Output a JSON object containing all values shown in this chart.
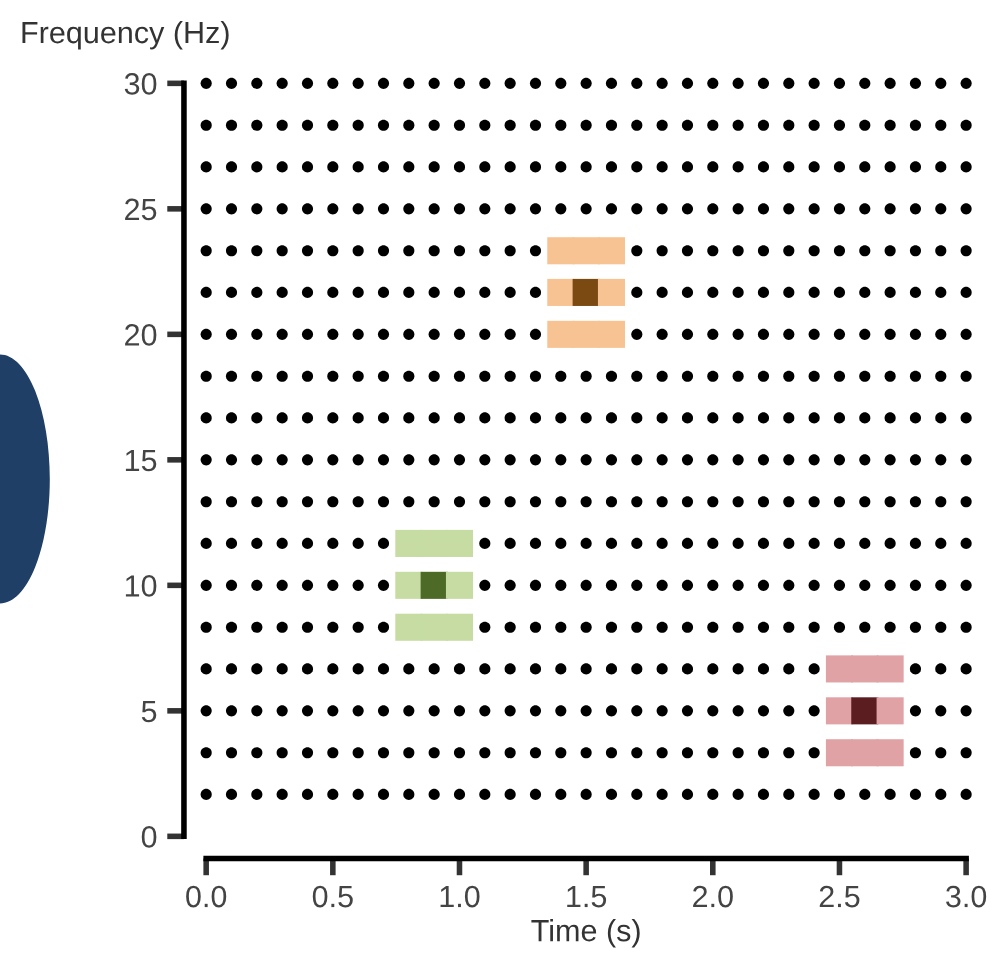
{
  "chart_data": {
    "type": "scatter",
    "xlabel": "Time (s)",
    "ylabel": "Frequency (Hz)",
    "marker": "circle",
    "x": [
      0,
      0.1,
      0.2,
      0.3,
      0.4,
      0.5,
      0.6,
      0.7,
      0.8,
      0.9,
      1.0,
      1.1,
      1.2,
      1.3,
      1.4,
      1.5,
      1.6,
      1.7,
      1.8,
      1.9,
      2.0,
      2.1,
      2.2,
      2.3,
      2.4,
      2.5,
      2.6,
      2.7,
      2.8,
      2.9,
      3.0
    ],
    "xlim": [
      0,
      3
    ],
    "xticks": [
      {
        "value": 0,
        "label": "0.0"
      },
      {
        "value": 0.5,
        "label": "0.5"
      },
      {
        "value": 1,
        "label": "1.0"
      },
      {
        "value": 1.5,
        "label": "1.5"
      },
      {
        "value": 2,
        "label": "2.0"
      },
      {
        "value": 2.5,
        "label": "2.5"
      },
      {
        "value": 3,
        "label": "3.0"
      }
    ],
    "ylim": [
      0,
      30
    ],
    "yticks": [
      0,
      5,
      10,
      15,
      20,
      25,
      30
    ],
    "series": [
      {
        "color": "#000000",
        "values": [
          1.67,
          1.67,
          1.67,
          1.67,
          1.67,
          1.67,
          1.67,
          1.67,
          1.67,
          1.67,
          1.67,
          1.67,
          1.67,
          1.67,
          1.67,
          1.67,
          1.67,
          1.67,
          1.67,
          1.67,
          1.67,
          1.67,
          1.67,
          1.67,
          1.67,
          1.67,
          1.67,
          1.67,
          1.67,
          1.67,
          1.67
        ]
      },
      {
        "color": "#000000",
        "values": [
          3.33,
          3.33,
          3.33,
          3.33,
          3.33,
          3.33,
          3.33,
          3.33,
          3.33,
          3.33,
          3.33,
          3.33,
          3.33,
          3.33,
          3.33,
          3.33,
          3.33,
          3.33,
          3.33,
          3.33,
          3.33,
          3.33,
          3.33,
          3.33,
          3.33,
          null,
          null,
          null,
          3.33,
          3.33,
          3.33
        ]
      },
      {
        "color": "#000000",
        "values": [
          5,
          5,
          5,
          5,
          5,
          5,
          5,
          5,
          5,
          5,
          5,
          5,
          5,
          5,
          5,
          5,
          5,
          5,
          5,
          5,
          5,
          5,
          5,
          5,
          5,
          null,
          null,
          null,
          5,
          5,
          5
        ]
      },
      {
        "color": "#000000",
        "values": [
          6.67,
          6.67,
          6.67,
          6.67,
          6.67,
          6.67,
          6.67,
          6.67,
          6.67,
          6.67,
          6.67,
          6.67,
          6.67,
          6.67,
          6.67,
          6.67,
          6.67,
          6.67,
          6.67,
          6.67,
          6.67,
          6.67,
          6.67,
          6.67,
          6.67,
          null,
          null,
          null,
          6.67,
          6.67,
          6.67
        ]
      },
      {
        "color": "#000000",
        "values": [
          8.33,
          8.33,
          8.33,
          8.33,
          8.33,
          8.33,
          8.33,
          8.33,
          null,
          null,
          null,
          8.33,
          8.33,
          8.33,
          8.33,
          8.33,
          8.33,
          8.33,
          8.33,
          8.33,
          8.33,
          8.33,
          8.33,
          8.33,
          8.33,
          8.33,
          8.33,
          8.33,
          8.33,
          8.33,
          8.33
        ]
      },
      {
        "color": "#000000",
        "values": [
          10,
          10,
          10,
          10,
          10,
          10,
          10,
          10,
          null,
          null,
          null,
          10,
          10,
          10,
          10,
          10,
          10,
          10,
          10,
          10,
          10,
          10,
          10,
          10,
          10,
          10,
          10,
          10,
          10,
          10,
          10
        ]
      },
      {
        "color": "#000000",
        "values": [
          11.67,
          11.67,
          11.67,
          11.67,
          11.67,
          11.67,
          11.67,
          11.67,
          null,
          null,
          null,
          11.67,
          11.67,
          11.67,
          11.67,
          11.67,
          11.67,
          11.67,
          11.67,
          11.67,
          11.67,
          11.67,
          11.67,
          11.67,
          11.67,
          11.67,
          11.67,
          11.67,
          11.67,
          11.67,
          11.67
        ]
      },
      {
        "color": "#000000",
        "values": [
          13.33,
          13.33,
          13.33,
          13.33,
          13.33,
          13.33,
          13.33,
          13.33,
          13.33,
          13.33,
          13.33,
          13.33,
          13.33,
          13.33,
          13.33,
          13.33,
          13.33,
          13.33,
          13.33,
          13.33,
          13.33,
          13.33,
          13.33,
          13.33,
          13.33,
          13.33,
          13.33,
          13.33,
          13.33,
          13.33,
          13.33
        ]
      },
      {
        "color": "#000000",
        "values": [
          15,
          15,
          15,
          15,
          15,
          15,
          15,
          15,
          15,
          15,
          15,
          15,
          15,
          15,
          15,
          15,
          15,
          15,
          15,
          15,
          15,
          15,
          15,
          15,
          15,
          15,
          15,
          15,
          15,
          15,
          15
        ]
      },
      {
        "color": "#000000",
        "values": [
          16.67,
          16.67,
          16.67,
          16.67,
          16.67,
          16.67,
          16.67,
          16.67,
          16.67,
          16.67,
          16.67,
          16.67,
          16.67,
          16.67,
          16.67,
          16.67,
          16.67,
          16.67,
          16.67,
          16.67,
          16.67,
          16.67,
          16.67,
          16.67,
          16.67,
          16.67,
          16.67,
          16.67,
          16.67,
          16.67,
          16.67
        ]
      },
      {
        "color": "#000000",
        "values": [
          18.33,
          18.33,
          18.33,
          18.33,
          18.33,
          18.33,
          18.33,
          18.33,
          18.33,
          18.33,
          18.33,
          18.33,
          18.33,
          18.33,
          18.33,
          18.33,
          18.33,
          18.33,
          18.33,
          18.33,
          18.33,
          18.33,
          18.33,
          18.33,
          18.33,
          18.33,
          18.33,
          18.33,
          18.33,
          18.33,
          18.33
        ]
      },
      {
        "color": "#000000",
        "values": [
          20,
          20,
          20,
          20,
          20,
          20,
          20,
          20,
          20,
          20,
          20,
          20,
          20,
          20,
          null,
          null,
          null,
          20,
          20,
          20,
          20,
          20,
          20,
          20,
          20,
          20,
          20,
          20,
          20,
          20,
          20
        ]
      },
      {
        "color": "#000000",
        "values": [
          21.67,
          21.67,
          21.67,
          21.67,
          21.67,
          21.67,
          21.67,
          21.67,
          21.67,
          21.67,
          21.67,
          21.67,
          21.67,
          21.67,
          null,
          null,
          null,
          21.67,
          21.67,
          21.67,
          21.67,
          21.67,
          21.67,
          21.67,
          21.67,
          21.67,
          21.67,
          21.67,
          21.67,
          21.67,
          21.67
        ]
      },
      {
        "color": "#000000",
        "values": [
          23.33,
          23.33,
          23.33,
          23.33,
          23.33,
          23.33,
          23.33,
          23.33,
          23.33,
          23.33,
          23.33,
          23.33,
          23.33,
          23.33,
          null,
          null,
          null,
          23.33,
          23.33,
          23.33,
          23.33,
          23.33,
          23.33,
          23.33,
          23.33,
          23.33,
          23.33,
          23.33,
          23.33,
          23.33,
          23.33
        ]
      },
      {
        "color": "#000000",
        "values": [
          25,
          25,
          25,
          25,
          25,
          25,
          25,
          25,
          25,
          25,
          25,
          25,
          25,
          25,
          25,
          25,
          25,
          25,
          25,
          25,
          25,
          25,
          25,
          25,
          25,
          25,
          25,
          25,
          25,
          25,
          25
        ]
      },
      {
        "color": "#000000",
        "values": [
          26.67,
          26.67,
          26.67,
          26.67,
          26.67,
          26.67,
          26.67,
          26.67,
          26.67,
          26.67,
          26.67,
          26.67,
          26.67,
          26.67,
          26.67,
          26.67,
          26.67,
          26.67,
          26.67,
          26.67,
          26.67,
          26.67,
          26.67,
          26.67,
          26.67,
          26.67,
          26.67,
          26.67,
          26.67,
          26.67,
          26.67
        ]
      },
      {
        "color": "#000000",
        "values": [
          28.33,
          28.33,
          28.33,
          28.33,
          28.33,
          28.33,
          28.33,
          28.33,
          28.33,
          28.33,
          28.33,
          28.33,
          28.33,
          28.33,
          28.33,
          28.33,
          28.33,
          28.33,
          28.33,
          28.33,
          28.33,
          28.33,
          28.33,
          28.33,
          28.33,
          28.33,
          28.33,
          28.33,
          28.33,
          28.33,
          28.33
        ]
      },
      {
        "color": "#000000",
        "values": [
          30,
          30,
          30,
          30,
          30,
          30,
          30,
          30,
          30,
          30,
          30,
          30,
          30,
          30,
          30,
          30,
          30,
          30,
          30,
          30,
          30,
          30,
          30,
          30,
          30,
          30,
          30,
          30,
          30,
          30,
          30
        ]
      },
      {
        "marker": "square",
        "x": [
          0.8,
          0.9,
          1.0,
          0.8,
          0.9,
          1.0,
          0.8,
          0.9,
          1.0
        ],
        "values": [
          11.67,
          11.67,
          11.67,
          10,
          10,
          10,
          8.33,
          8.33,
          8.33
        ],
        "colors": [
          "#c6dca3",
          "#c6dca3",
          "#c6dca3",
          "#c6dca3",
          "#4d6a27",
          "#c6dca3",
          "#c6dca3",
          "#c6dca3",
          "#c6dca3"
        ]
      },
      {
        "marker": "square",
        "x": [
          1.4,
          1.5,
          1.6,
          1.4,
          1.5,
          1.6,
          1.4,
          1.5,
          1.6
        ],
        "values": [
          23.33,
          23.33,
          23.33,
          21.67,
          21.67,
          21.67,
          20,
          20,
          20
        ],
        "colors": [
          "#f8c393",
          "#f8c393",
          "#f8c393",
          "#f8c393",
          "#7b4a12",
          "#f8c393",
          "#f8c393",
          "#f8c393",
          "#f8c393"
        ]
      },
      {
        "marker": "square",
        "x": [
          2.5,
          2.6,
          2.7,
          2.5,
          2.6,
          2.7,
          2.5,
          2.6,
          2.7
        ],
        "values": [
          6.67,
          6.67,
          6.67,
          5,
          5,
          5,
          3.33,
          3.33,
          3.33
        ],
        "colors": [
          "#e1a2a5",
          "#e1a2a5",
          "#e1a2a5",
          "#e1a2a5",
          "#5b1d1f",
          "#e1a2a5",
          "#e1a2a5",
          "#e1a2a5",
          "#e1a2a5"
        ]
      }
    ]
  }
}
